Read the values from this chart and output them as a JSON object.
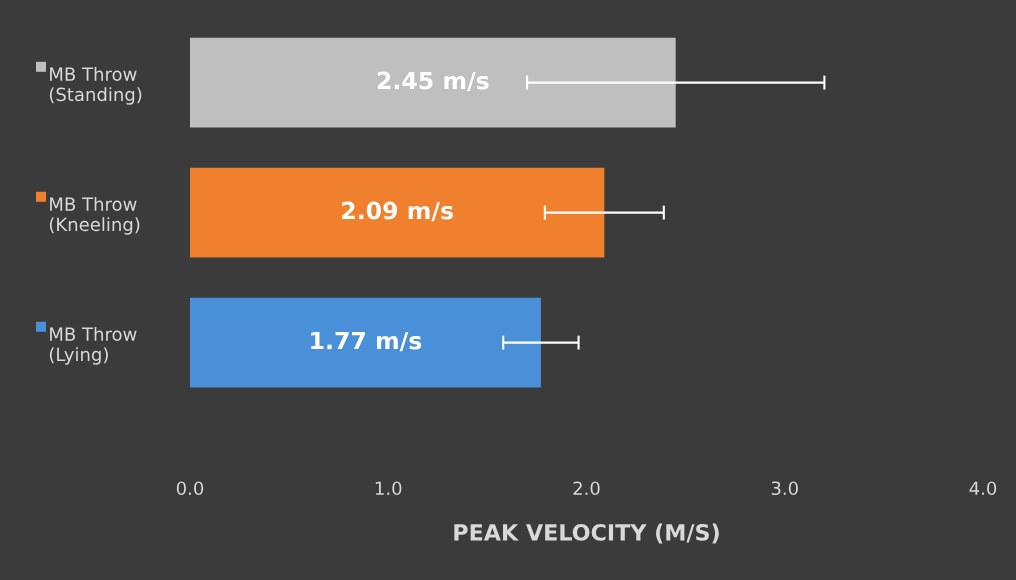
{
  "chart_data": {
    "type": "bar",
    "orientation": "horizontal",
    "categories": [
      "MB Throw\n(Standing)",
      "MB Throw\n(Kneeling)",
      "MB Throw\n(Lying)"
    ],
    "values": [
      2.45,
      2.09,
      1.77
    ],
    "colors": [
      "#bfbfbf",
      "#f07f2e",
      "#4a90d9"
    ],
    "errors": [
      0.75,
      0.3,
      0.19
    ],
    "value_labels": [
      "2.45 m/s",
      "2.09 m/s",
      "1.77 m/s"
    ],
    "xlabel": "PEAK VELOCITY (M/S)",
    "xlim": [
      0,
      4
    ],
    "xticks": [
      {
        "value": 0,
        "label": "0.0"
      },
      {
        "value": 1,
        "label": "1.0"
      },
      {
        "value": 2,
        "label": "2.0"
      },
      {
        "value": 3,
        "label": "3.0"
      },
      {
        "value": 4,
        "label": "4.0"
      }
    ],
    "grid": false
  }
}
